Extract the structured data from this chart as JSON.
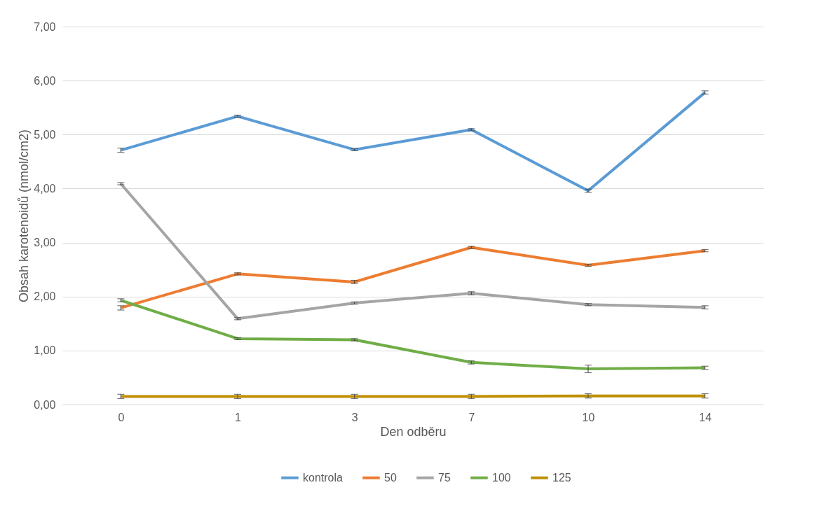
{
  "chart_data": {
    "type": "line",
    "xlabel": "Den odběru",
    "ylabel": "Obsah karotenoidů (nmol/cm2)",
    "categories": [
      "0",
      "1",
      "3",
      "7",
      "10",
      "14"
    ],
    "series": [
      {
        "name": "kontrola",
        "color": "#5b9bd5",
        "values": [
          4.71,
          5.34,
          4.72,
          5.09,
          3.96,
          5.78
        ],
        "errors": [
          0.04,
          0.02,
          0.02,
          0.02,
          0.03,
          0.03
        ]
      },
      {
        "name": "50",
        "color": "#ed7d31",
        "values": [
          1.79,
          2.42,
          2.27,
          2.91,
          2.58,
          2.85
        ],
        "errors": [
          0.04,
          0.02,
          0.03,
          0.02,
          0.02,
          0.02
        ]
      },
      {
        "name": "75",
        "color": "#a5a5a5",
        "values": [
          4.09,
          1.59,
          1.88,
          2.06,
          1.85,
          1.8
        ],
        "errors": [
          0.02,
          0.02,
          0.02,
          0.03,
          0.02,
          0.03
        ]
      },
      {
        "name": "100",
        "color": "#70ad47",
        "values": [
          1.93,
          1.22,
          1.2,
          0.78,
          0.66,
          0.68
        ],
        "errors": [
          0.03,
          0.02,
          0.02,
          0.03,
          0.07,
          0.03
        ]
      },
      {
        "name": "125",
        "color": "#bf8f00",
        "values": [
          0.15,
          0.15,
          0.15,
          0.15,
          0.16,
          0.16
        ],
        "errors": [
          0.04,
          0.04,
          0.04,
          0.04,
          0.04,
          0.04
        ]
      }
    ],
    "ylim": [
      0,
      7
    ],
    "yticks": [
      {
        "value": 0,
        "label": "0,00"
      },
      {
        "value": 1,
        "label": "1,00"
      },
      {
        "value": 2,
        "label": "2,00"
      },
      {
        "value": 3,
        "label": "3,00"
      },
      {
        "value": 4,
        "label": "4,00"
      },
      {
        "value": 5,
        "label": "5,00"
      },
      {
        "value": 6,
        "label": "6,00"
      },
      {
        "value": 7,
        "label": "7,00"
      }
    ],
    "grid": "y",
    "legend": "bottom",
    "marker": "none",
    "line_style": "solid"
  }
}
